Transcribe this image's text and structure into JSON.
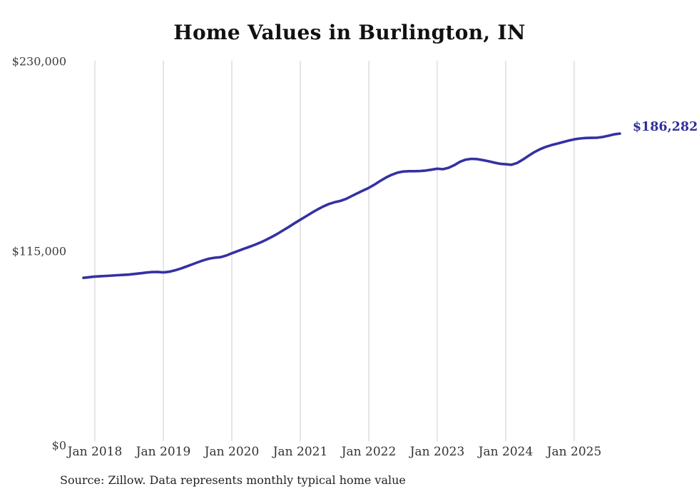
{
  "title": "Home Values in Burlington, IN",
  "source_note": "Source: Zillow. Data represents monthly typical home value",
  "colors": {
    "line": "#3431a2",
    "end_label_text": "#312e9d",
    "gridline": "#cccccc",
    "y_label_text": "#3d3d3d",
    "x_label_text": "#333333",
    "title_text": "#111111",
    "source_text": "#222222",
    "background": "#ffffff"
  },
  "chart_data": {
    "type": "line",
    "title": "Home Values in Burlington, IN",
    "xlabel": "",
    "ylabel": "",
    "ylim": [
      0,
      230000
    ],
    "grid": "vertical-only",
    "legend": "none",
    "end_label": "$186,282",
    "latest_value": 186282,
    "y_ticks": [
      {
        "value": 0,
        "label": "$0"
      },
      {
        "value": 115000,
        "label": "$115,000"
      },
      {
        "value": 230000,
        "label": "$230,000"
      }
    ],
    "x_tick_labels": [
      "Jan 2018",
      "Jan 2019",
      "Jan 2020",
      "Jan 2021",
      "Jan 2022",
      "Jan 2023",
      "Jan 2024",
      "Jan 2025"
    ],
    "series": [
      {
        "name": "Monthly typical home value",
        "months": [
          "2017-11",
          "2017-12",
          "2018-01",
          "2018-02",
          "2018-03",
          "2018-04",
          "2018-05",
          "2018-06",
          "2018-07",
          "2018-08",
          "2018-09",
          "2018-10",
          "2018-11",
          "2018-12",
          "2019-01",
          "2019-02",
          "2019-03",
          "2019-04",
          "2019-05",
          "2019-06",
          "2019-07",
          "2019-08",
          "2019-09",
          "2019-10",
          "2019-11",
          "2019-12",
          "2020-01",
          "2020-02",
          "2020-03",
          "2020-04",
          "2020-05",
          "2020-06",
          "2020-07",
          "2020-08",
          "2020-09",
          "2020-10",
          "2020-11",
          "2020-12",
          "2021-01",
          "2021-02",
          "2021-03",
          "2021-04",
          "2021-05",
          "2021-06",
          "2021-07",
          "2021-08",
          "2021-09",
          "2021-10",
          "2021-11",
          "2021-12",
          "2022-01",
          "2022-02",
          "2022-03",
          "2022-04",
          "2022-05",
          "2022-06",
          "2022-07",
          "2022-08",
          "2022-09",
          "2022-10",
          "2022-11",
          "2022-12",
          "2023-01",
          "2023-02",
          "2023-03",
          "2023-04",
          "2023-05",
          "2023-06",
          "2023-07",
          "2023-08",
          "2023-09",
          "2023-10",
          "2023-11",
          "2023-12",
          "2024-01",
          "2024-02",
          "2024-03",
          "2024-04",
          "2024-05",
          "2024-06",
          "2024-07",
          "2024-08",
          "2024-09",
          "2024-10",
          "2024-11",
          "2024-12",
          "2025-01",
          "2025-02",
          "2025-03",
          "2025-04",
          "2025-05",
          "2025-06",
          "2025-07",
          "2025-08",
          "2025-09"
        ],
        "values": [
          98900,
          99300,
          99700,
          99900,
          100100,
          100300,
          100500,
          100700,
          100900,
          101300,
          101700,
          102100,
          102400,
          102500,
          102200,
          102600,
          103400,
          104500,
          105700,
          107000,
          108300,
          109500,
          110500,
          111100,
          111400,
          112400,
          113800,
          115100,
          116400,
          117600,
          118900,
          120300,
          121900,
          123700,
          125600,
          127700,
          129800,
          132000,
          134100,
          136200,
          138300,
          140300,
          142100,
          143600,
          144700,
          145500,
          146700,
          148400,
          150100,
          151800,
          153400,
          155400,
          157600,
          159600,
          161300,
          162600,
          163300,
          163500,
          163500,
          163600,
          163900,
          164400,
          165000,
          164700,
          165600,
          167200,
          169200,
          170500,
          171000,
          170800,
          170200,
          169500,
          168700,
          168000,
          167700,
          167400,
          168500,
          170500,
          172800,
          175000,
          176800,
          178200,
          179300,
          180200,
          181100,
          182000,
          182800,
          183300,
          183600,
          183700,
          183800,
          184200,
          185000,
          185800,
          186282
        ]
      }
    ]
  }
}
